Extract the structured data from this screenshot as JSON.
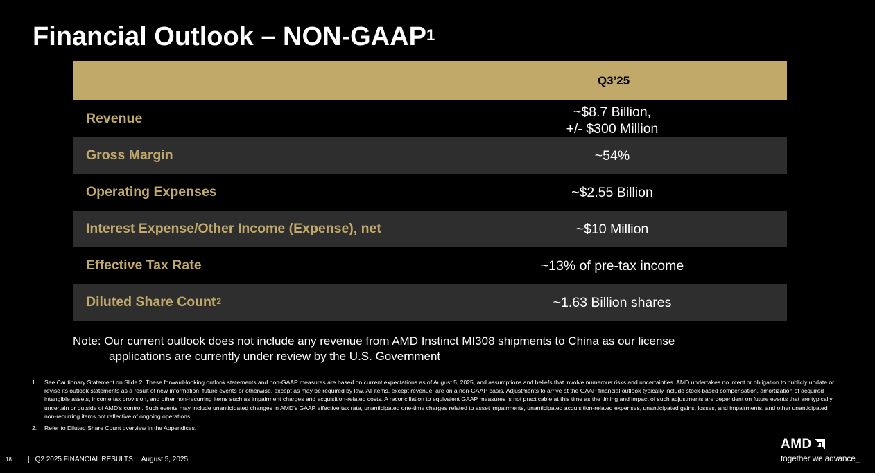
{
  "title": {
    "text": "Financial Outlook – NON-GAAP",
    "superscript": "1"
  },
  "table": {
    "column_header": "Q3’25",
    "rows": [
      {
        "label": "Revenue",
        "value_line1": "~$8.7 Billion,",
        "value_line2": "+/- $300 Million"
      },
      {
        "label": "Gross Margin",
        "value": "~54%"
      },
      {
        "label": "Operating Expenses",
        "value": "~$2.55 Billion"
      },
      {
        "label": "Interest Expense/Other Income (Expense), net",
        "value": "~$10 Million"
      },
      {
        "label": "Effective Tax Rate",
        "value": "~13% of pre-tax income"
      },
      {
        "label": "Diluted Share Count",
        "label_superscript": "2",
        "value": "~1.63 Billion shares"
      }
    ]
  },
  "note": {
    "line1": "Note: Our current outlook does not include any revenue from AMD Instinct MI308 shipments to China as our license",
    "line2": "applications are currently under review by the U.S. Government"
  },
  "footnotes": [
    {
      "number": "1.",
      "text": "See Cautionary Statement on Slide 2. These forward-looking outlook statements and non-GAAP measures are based on current expectations as of August 5, 2025, and assumptions and beliefs that involve numerous risks and uncertainties. AMD undertakes no intent or obligation to publicly update or revise its outlook statements as a result of new information, future events or otherwise, except as may be required by law. All items, except revenue, are on a non-GAAP basis. Adjustments to arrive at the GAAP financial outlook typically include stock-based compensation, amortization of acquired intangible assets, income tax provision, and other non-recurring items such as impairment charges and acquisition-related costs. A reconciliation to equivalent GAAP measures is not practicable at this time as the timing and impact of such adjustments are dependent on future events that are typically uncertain or outside of AMD’s control. Such events may include unanticipated changes in AMD’s GAAP effective tax rate, unanticipated one-time charges related to asset impairments, unanticipated acquisition-related expenses, unanticipated gains, losses, and impairments, and other unanticipated non-recurring items not reflective of ongoing operations."
    },
    {
      "number": "2.",
      "text": "Refer to Diluted Share Count overview in the Appendices."
    }
  ],
  "footer": {
    "page_number": "18",
    "separator": "|",
    "report": "Q2 2025 FINANCIAL RESULTS",
    "date": "August 5, 2025"
  },
  "logo": {
    "brand": "AMD",
    "tagline": "together we advance_",
    "icon": "amd-arrow-icon"
  },
  "colors": {
    "background": "#000000",
    "accent_gold": "#c1a96a",
    "row_alt": "#2e2e2e",
    "text": "#ffffff"
  }
}
